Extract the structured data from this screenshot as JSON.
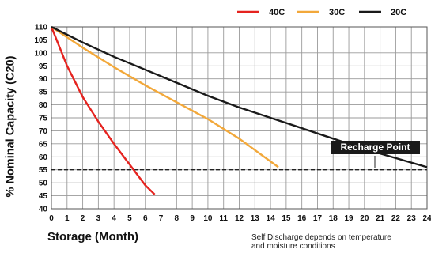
{
  "chart_data": {
    "type": "line",
    "title": "",
    "xlabel": "Storage (Month)",
    "ylabel": "% Nominal Capacity (C20)",
    "xlim": [
      0,
      24
    ],
    "ylim": [
      40,
      110
    ],
    "x_ticks": [
      0,
      1,
      2,
      3,
      4,
      5,
      6,
      7,
      8,
      9,
      10,
      11,
      12,
      13,
      14,
      15,
      16,
      17,
      18,
      19,
      20,
      21,
      22,
      23,
      24
    ],
    "y_ticks": [
      40,
      45,
      50,
      55,
      60,
      65,
      70,
      75,
      80,
      85,
      90,
      95,
      100,
      105,
      110
    ],
    "grid": true,
    "legend_position": "top-right",
    "series": [
      {
        "name": "40C",
        "color": "#e5231f",
        "points": [
          [
            0,
            110
          ],
          [
            1,
            95
          ],
          [
            2,
            83
          ],
          [
            3,
            73.5
          ],
          [
            4,
            65
          ],
          [
            5,
            57
          ],
          [
            6,
            49
          ],
          [
            6.6,
            45.5
          ]
        ]
      },
      {
        "name": "30C",
        "color": "#f2a83a",
        "points": [
          [
            0,
            110
          ],
          [
            2,
            102
          ],
          [
            4,
            94.5
          ],
          [
            6,
            87.5
          ],
          [
            8,
            81
          ],
          [
            10,
            74.5
          ],
          [
            12,
            67
          ],
          [
            14.5,
            56
          ]
        ]
      },
      {
        "name": "20C",
        "color": "#1a1a1a",
        "points": [
          [
            0,
            110
          ],
          [
            2,
            104
          ],
          [
            4,
            98.5
          ],
          [
            6,
            93.5
          ],
          [
            8,
            88.5
          ],
          [
            10,
            83.5
          ],
          [
            12,
            79
          ],
          [
            14,
            75
          ],
          [
            16,
            71
          ],
          [
            18,
            67
          ],
          [
            20,
            63
          ],
          [
            22,
            59.5
          ],
          [
            24,
            56
          ]
        ]
      }
    ],
    "reference_line": {
      "label": "Recharge Point",
      "y": 55,
      "style": "dashed"
    },
    "annotations": [
      "Self Discharge depends on temperature",
      "and moisture conditions"
    ]
  }
}
